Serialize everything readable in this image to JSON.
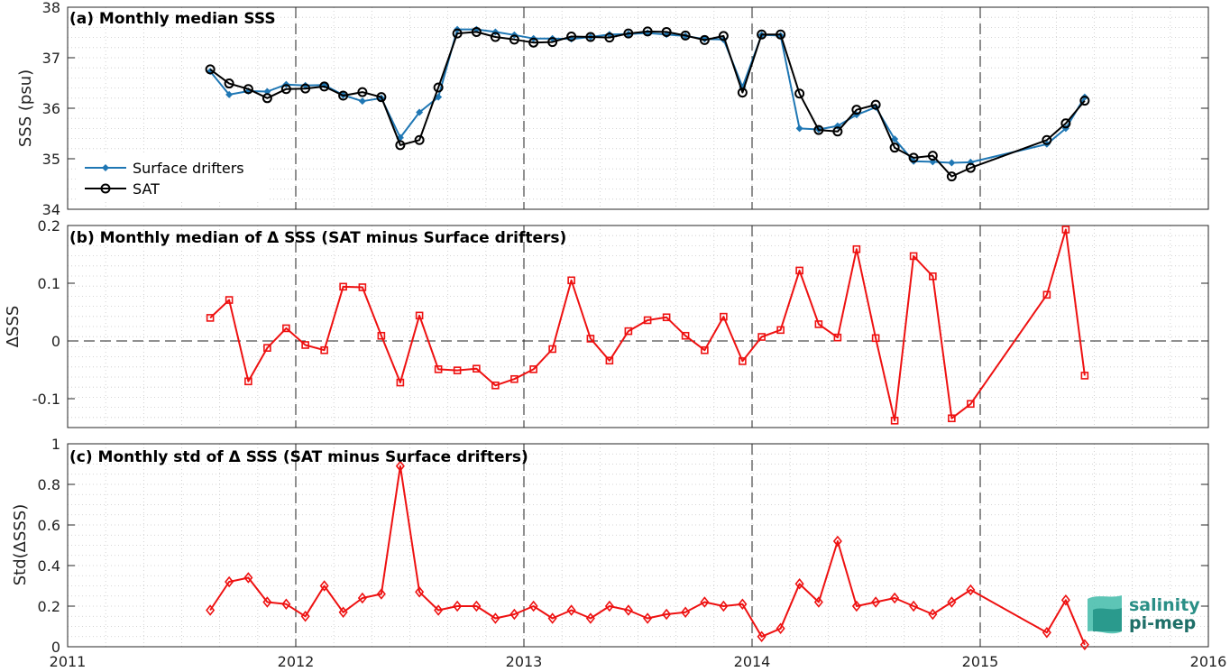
{
  "chart_data": [
    {
      "type": "line",
      "title": "(a) Monthly median SSS",
      "ylabel": "SSS (psu)",
      "xlim": [
        2011,
        2016
      ],
      "ylim": [
        34,
        38
      ],
      "yticks": [
        34,
        35,
        36,
        37,
        38
      ],
      "grid": "minor dotted, vertical dashed at year boundaries",
      "legend_placement": "lower-left",
      "series": [
        {
          "name": "Surface drifters",
          "color": "#1f77b4",
          "marker": "filled-diamond",
          "x": [
            2011.625,
            2011.708,
            2011.792,
            2011.875,
            2011.958,
            2012.042,
            2012.125,
            2012.208,
            2012.292,
            2012.375,
            2012.458,
            2012.542,
            2012.625,
            2012.708,
            2012.792,
            2012.875,
            2012.958,
            2013.042,
            2013.125,
            2013.208,
            2013.292,
            2013.375,
            2013.458,
            2013.542,
            2013.625,
            2013.708,
            2013.792,
            2013.875,
            2013.958,
            2014.042,
            2014.125,
            2014.208,
            2014.292,
            2014.375,
            2014.458,
            2014.542,
            2014.625,
            2014.708,
            2014.792,
            2014.875,
            2014.958,
            2015.292,
            2015.375,
            2015.458
          ],
          "y": [
            36.73,
            36.27,
            36.34,
            36.33,
            36.47,
            36.45,
            36.46,
            36.26,
            36.14,
            36.2,
            35.42,
            35.92,
            36.22,
            37.56,
            37.56,
            37.51,
            37.45,
            37.38,
            37.38,
            37.37,
            37.41,
            37.46,
            37.47,
            37.49,
            37.46,
            37.43,
            37.37,
            37.36,
            36.42,
            37.45,
            37.44,
            35.6,
            35.58,
            35.65,
            35.87,
            36.02,
            35.39,
            34.95,
            34.94,
            34.92,
            34.93,
            35.29,
            35.6,
            36.22
          ]
        },
        {
          "name": "SAT",
          "color": "#000000",
          "marker": "open-circle",
          "x": [
            2011.625,
            2011.708,
            2011.792,
            2011.875,
            2011.958,
            2012.042,
            2012.125,
            2012.208,
            2012.292,
            2012.375,
            2012.458,
            2012.542,
            2012.625,
            2012.708,
            2012.792,
            2012.875,
            2012.958,
            2013.042,
            2013.125,
            2013.208,
            2013.292,
            2013.375,
            2013.458,
            2013.542,
            2013.625,
            2013.708,
            2013.792,
            2013.875,
            2013.958,
            2014.042,
            2014.125,
            2014.208,
            2014.292,
            2014.375,
            2014.458,
            2014.542,
            2014.625,
            2014.708,
            2014.792,
            2014.875,
            2014.958,
            2015.292,
            2015.375,
            2015.458
          ],
          "y": [
            36.77,
            36.49,
            36.38,
            36.2,
            36.38,
            36.39,
            36.43,
            36.25,
            36.32,
            36.22,
            35.27,
            35.37,
            36.41,
            37.48,
            37.51,
            37.41,
            37.36,
            37.3,
            37.31,
            37.42,
            37.41,
            37.4,
            37.48,
            37.52,
            37.51,
            37.44,
            37.35,
            37.43,
            36.31,
            37.46,
            37.46,
            36.29,
            35.57,
            35.54,
            35.97,
            36.07,
            35.22,
            35.02,
            35.06,
            34.65,
            34.82,
            35.37,
            35.7,
            36.15
          ]
        }
      ]
    },
    {
      "type": "line",
      "title": "(b) Monthly median of Δ SSS (SAT minus Surface drifters)",
      "ylabel": "ΔSSS",
      "xlim": [
        2011,
        2016
      ],
      "ylim": [
        -0.15,
        0.2
      ],
      "yticks": [
        -0.1,
        0,
        0.1,
        0.2
      ],
      "ytick_labels": [
        "-0.1",
        "0",
        "0.1",
        "0.2"
      ],
      "zero_line": "dashed",
      "series": [
        {
          "name": "",
          "color": "#ee1111",
          "marker": "open-square",
          "x": [
            2011.625,
            2011.708,
            2011.792,
            2011.875,
            2011.958,
            2012.042,
            2012.125,
            2012.208,
            2012.292,
            2012.375,
            2012.458,
            2012.542,
            2012.625,
            2012.708,
            2012.792,
            2012.875,
            2012.958,
            2013.042,
            2013.125,
            2013.208,
            2013.292,
            2013.375,
            2013.458,
            2013.542,
            2013.625,
            2013.708,
            2013.792,
            2013.875,
            2013.958,
            2014.042,
            2014.125,
            2014.208,
            2014.292,
            2014.375,
            2014.458,
            2014.542,
            2014.625,
            2014.708,
            2014.792,
            2014.875,
            2014.958,
            2015.292,
            2015.375,
            2015.458
          ],
          "y": [
            0.04,
            0.071,
            -0.07,
            -0.012,
            0.022,
            -0.007,
            -0.016,
            0.094,
            0.093,
            0.009,
            -0.072,
            0.044,
            -0.049,
            -0.051,
            -0.048,
            -0.077,
            -0.066,
            -0.049,
            -0.014,
            0.105,
            0.004,
            -0.034,
            0.017,
            0.036,
            0.041,
            0.009,
            -0.016,
            0.042,
            -0.035,
            0.007,
            0.019,
            0.122,
            0.029,
            0.006,
            0.159,
            0.005,
            -0.138,
            0.147,
            0.112,
            -0.134,
            -0.109,
            0.08,
            0.193,
            -0.06
          ]
        }
      ]
    },
    {
      "type": "line",
      "title": "(c) Monthly std of Δ SSS (SAT minus Surface drifters)",
      "ylabel": "Std(ΔSSS)",
      "xlabel": "",
      "xlim": [
        2011,
        2016
      ],
      "xticks": [
        2011,
        2012,
        2013,
        2014,
        2015,
        2016
      ],
      "ylim": [
        0,
        1
      ],
      "yticks": [
        0,
        0.2,
        0.4,
        0.6,
        0.8,
        1
      ],
      "ytick_labels": [
        "0",
        "0.2",
        "0.4",
        "0.6",
        "0.8",
        "1"
      ],
      "series": [
        {
          "name": "",
          "color": "#ee1111",
          "marker": "open-diamond",
          "x": [
            2011.625,
            2011.708,
            2011.792,
            2011.875,
            2011.958,
            2012.042,
            2012.125,
            2012.208,
            2012.292,
            2012.375,
            2012.458,
            2012.542,
            2012.625,
            2012.708,
            2012.792,
            2012.875,
            2012.958,
            2013.042,
            2013.125,
            2013.208,
            2013.292,
            2013.375,
            2013.458,
            2013.542,
            2013.625,
            2013.708,
            2013.792,
            2013.875,
            2013.958,
            2014.042,
            2014.125,
            2014.208,
            2014.292,
            2014.375,
            2014.458,
            2014.542,
            2014.625,
            2014.708,
            2014.792,
            2014.875,
            2014.958,
            2015.292,
            2015.375,
            2015.458
          ],
          "y": [
            0.18,
            0.32,
            0.34,
            0.22,
            0.21,
            0.15,
            0.3,
            0.17,
            0.24,
            0.26,
            0.89,
            0.27,
            0.18,
            0.2,
            0.2,
            0.14,
            0.16,
            0.2,
            0.14,
            0.18,
            0.14,
            0.2,
            0.18,
            0.14,
            0.16,
            0.17,
            0.22,
            0.2,
            0.21,
            0.05,
            0.09,
            0.31,
            0.22,
            0.52,
            0.2,
            0.22,
            0.24,
            0.2,
            0.16,
            0.22,
            0.28,
            0.07,
            0.23,
            0.01
          ]
        }
      ]
    }
  ],
  "logo": {
    "line1": "salinity",
    "line2": "pi-mep"
  },
  "colors": {
    "drifters": "#1f77b4",
    "sat": "#000000",
    "delta": "#ee1111",
    "logo": "#2a8f86"
  }
}
